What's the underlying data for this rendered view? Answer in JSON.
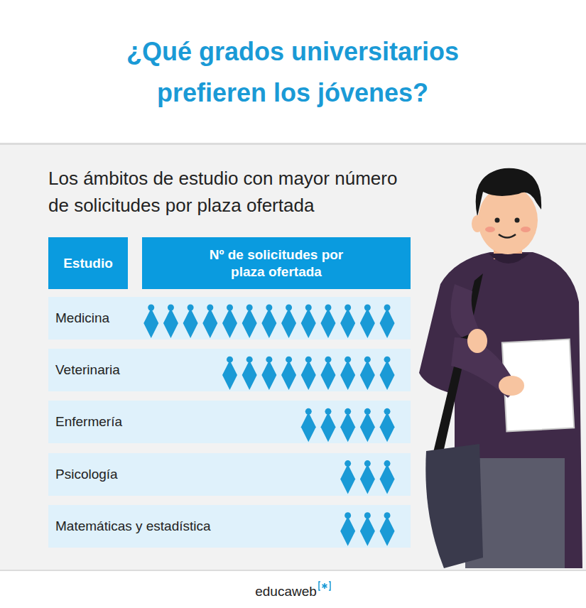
{
  "chart_data": {
    "type": "pictogram",
    "title": "¿Qué grados universitarios prefieren los jóvenes?",
    "subtitle": "Los ámbitos de estudio con mayor número de solicitudes por plaza ofertada",
    "category_header": "Estudio",
    "value_header": "Nº de solicitudes por plaza ofertada",
    "categories": [
      "Medicina",
      "Veterinaria",
      "Enfermería",
      "Psicología",
      "Matemáticas y estadística"
    ],
    "values": [
      13,
      9,
      5,
      3,
      3
    ],
    "color": "#1a9ad6",
    "tick_labels": false,
    "footer": "educaweb"
  }
}
